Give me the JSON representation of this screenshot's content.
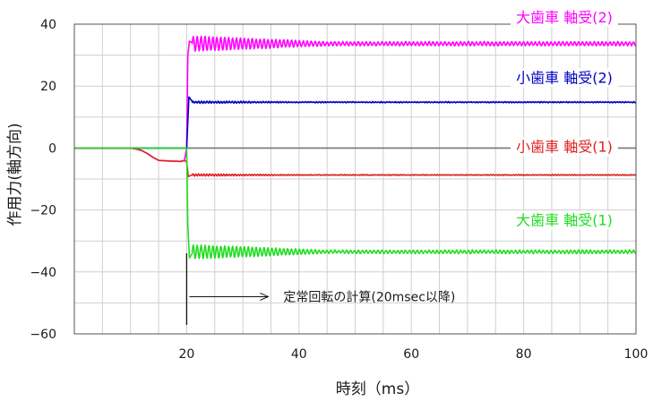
{
  "chart_data": {
    "type": "line",
    "xlabel": "時刻（ms）",
    "ylabel": "作用力(軸方向)",
    "xlim": [
      0,
      100
    ],
    "ylim": [
      -60,
      40
    ],
    "x_ticks": [
      20,
      40,
      60,
      80,
      100
    ],
    "y_ticks": [
      40,
      20,
      0,
      -20,
      -40,
      -60
    ],
    "x_minor_step": 5,
    "y_minor_step": 10,
    "grid": true,
    "annotation": {
      "text": "定常回転の計算(20msec以降)",
      "x": 20
    },
    "series": [
      {
        "name": "大歯車 軸受(2)",
        "color": "#ff00ff",
        "label_y": 41.5,
        "pre": [
          [
            0,
            0
          ],
          [
            10,
            0
          ],
          [
            11,
            -0.3
          ],
          [
            12,
            -0.8
          ],
          [
            13,
            -1.8
          ],
          [
            14,
            -3.0
          ],
          [
            15,
            -4.0
          ],
          [
            17,
            -4.2
          ],
          [
            19,
            -4.3
          ],
          [
            19.6,
            -4.0
          ],
          [
            20,
            0
          ]
        ],
        "jump": [
          [
            20,
            0
          ],
          [
            20.2,
            30
          ],
          [
            20.5,
            34.5
          ],
          [
            21,
            34
          ]
        ],
        "steady": {
          "start": 21,
          "end": 100,
          "base": 33.7,
          "amp_start": 2.5,
          "amp_end": 0.6,
          "decay_end": 45,
          "period": 0.7,
          "jitter": 0.25
        }
      },
      {
        "name": "小歯車 軸受(2)",
        "color": "#0000c0",
        "label_y": 22,
        "pre": [
          [
            0,
            0
          ],
          [
            20,
            0
          ]
        ],
        "jump": [
          [
            20,
            0
          ],
          [
            20.2,
            8.5
          ],
          [
            20.4,
            16.5
          ],
          [
            21,
            15
          ]
        ],
        "steady": {
          "start": 21,
          "end": 100,
          "base": 14.8,
          "amp_start": 0.35,
          "amp_end": 0.15,
          "decay_end": 40,
          "period": 0.5,
          "jitter": 0.15
        }
      },
      {
        "name": "小歯車 軸受(1)",
        "color": "#e02020",
        "label_y": -0.3,
        "pre": [
          [
            0,
            0
          ],
          [
            10,
            0
          ],
          [
            11,
            -0.3
          ],
          [
            12,
            -0.8
          ],
          [
            13,
            -1.8
          ],
          [
            14,
            -3.0
          ],
          [
            15,
            -4.0
          ],
          [
            17,
            -4.2
          ],
          [
            19,
            -4.3
          ],
          [
            19.6,
            -4.0
          ],
          [
            20,
            -4.5
          ]
        ],
        "jump": [
          [
            20,
            -4.5
          ],
          [
            20.3,
            -9.2
          ],
          [
            21,
            -8.6
          ]
        ],
        "steady": {
          "start": 21,
          "end": 100,
          "base": -8.7,
          "amp_start": 0.35,
          "amp_end": 0.12,
          "decay_end": 40,
          "period": 0.5,
          "jitter": 0.12
        }
      },
      {
        "name": "大歯車 軸受(1)",
        "color": "#22dd22",
        "label_y": -24,
        "pre": [
          [
            0,
            0
          ],
          [
            11,
            0
          ],
          [
            20,
            0
          ]
        ],
        "jump": [
          [
            20,
            0
          ],
          [
            20.2,
            -25
          ],
          [
            20.5,
            -35.5
          ],
          [
            21,
            -34
          ]
        ],
        "steady": {
          "start": 21,
          "end": 100,
          "base": -33.5,
          "amp_start": 2.3,
          "amp_end": 0.5,
          "decay_end": 45,
          "period": 0.7,
          "jitter": 0.25
        }
      }
    ],
    "zero_line": {
      "color": "#777777"
    }
  }
}
